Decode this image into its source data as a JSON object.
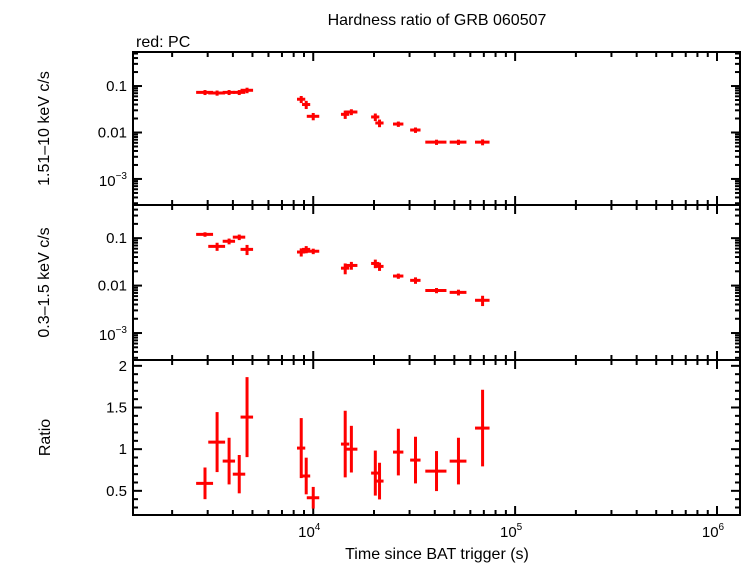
{
  "chart_data": {
    "type": "scatter",
    "title": "Hardness ratio of GRB 060507",
    "legend_text": "red: PC",
    "xlabel": "Time since BAT trigger (s)",
    "x_scale": "log",
    "xlim": [
      1280,
      1300000
    ],
    "x_tick_labels": [
      {
        "base": "10",
        "exp": "4",
        "value": 10000
      },
      {
        "base": "10",
        "exp": "5",
        "value": 100000
      },
      {
        "base": "10",
        "exp": "6",
        "value": 1000000
      }
    ],
    "series_color": "#ff0000",
    "x": [
      2910,
      3340,
      3830,
      4300,
      4700,
      8720,
      9230,
      10000,
      14400,
      15450,
      20300,
      21300,
      26400,
      32100,
      40800,
      52400,
      69000
    ],
    "xerr": [
      280,
      320,
      270,
      305,
      335,
      410,
      430,
      710,
      680,
      1100,
      950,
      1000,
      1560,
      1900,
      4900,
      5000,
      5700
    ],
    "panels": [
      {
        "ylabel": "1.51–10 keV c/s",
        "y_scale": "log",
        "ylim": [
          0.000275,
          0.54
        ],
        "y_tick_labels": [
          {
            "text": "0.1",
            "value": 0.1
          },
          {
            "text": "0.01",
            "value": 0.01
          },
          {
            "base": "10",
            "exp": "−3",
            "value": 0.001
          }
        ],
        "y": [
          0.073,
          0.071,
          0.073,
          0.073,
          0.081,
          0.052,
          0.04,
          0.0223,
          0.0246,
          0.0276,
          0.0216,
          0.016,
          0.0152,
          0.0113,
          0.0062,
          0.0062,
          0.0062
        ],
        "yerr": [
          0.009,
          0.009,
          0.009,
          0.009,
          0.011,
          0.009,
          0.008,
          0.004,
          0.005,
          0.004,
          0.004,
          0.003,
          0.002,
          0.0015,
          0.0008,
          0.0008,
          0.0009
        ]
      },
      {
        "ylabel": "0.3–1.5 keV c/s",
        "y_scale": "log",
        "ylim": [
          0.00027,
          0.5
        ],
        "y_tick_labels": [
          {
            "text": "0.1",
            "value": 0.1
          },
          {
            "text": "0.01",
            "value": 0.01
          },
          {
            "base": "10",
            "exp": "−3",
            "value": 0.001
          }
        ],
        "y": [
          0.12,
          0.067,
          0.086,
          0.105,
          0.058,
          0.051,
          0.058,
          0.053,
          0.0233,
          0.0266,
          0.0293,
          0.0254,
          0.0159,
          0.0129,
          0.0079,
          0.0072,
          0.0049
        ],
        "yerr": [
          0.013,
          0.013,
          0.012,
          0.014,
          0.014,
          0.01,
          0.01,
          0.007,
          0.006,
          0.005,
          0.006,
          0.005,
          0.002,
          0.002,
          0.001,
          0.001,
          0.0012
        ]
      },
      {
        "ylabel": "Ratio",
        "y_scale": "linear",
        "ylim": [
          0.21,
          2.07
        ],
        "y_tick_labels": [
          {
            "text": "0.5",
            "value": 0.5
          },
          {
            "text": "1",
            "value": 1
          },
          {
            "text": "1.5",
            "value": 1.5
          },
          {
            "text": "2",
            "value": 2
          }
        ],
        "y": [
          0.59,
          1.085,
          0.857,
          0.7,
          1.385,
          1.013,
          0.678,
          0.417,
          1.061,
          1.0,
          0.713,
          0.617,
          0.965,
          0.869,
          0.737,
          0.857,
          1.253
        ],
        "yerr": [
          0.19,
          0.36,
          0.28,
          0.23,
          0.48,
          0.36,
          0.22,
          0.13,
          0.4,
          0.28,
          0.27,
          0.22,
          0.28,
          0.28,
          0.24,
          0.28,
          0.46
        ]
      }
    ]
  }
}
